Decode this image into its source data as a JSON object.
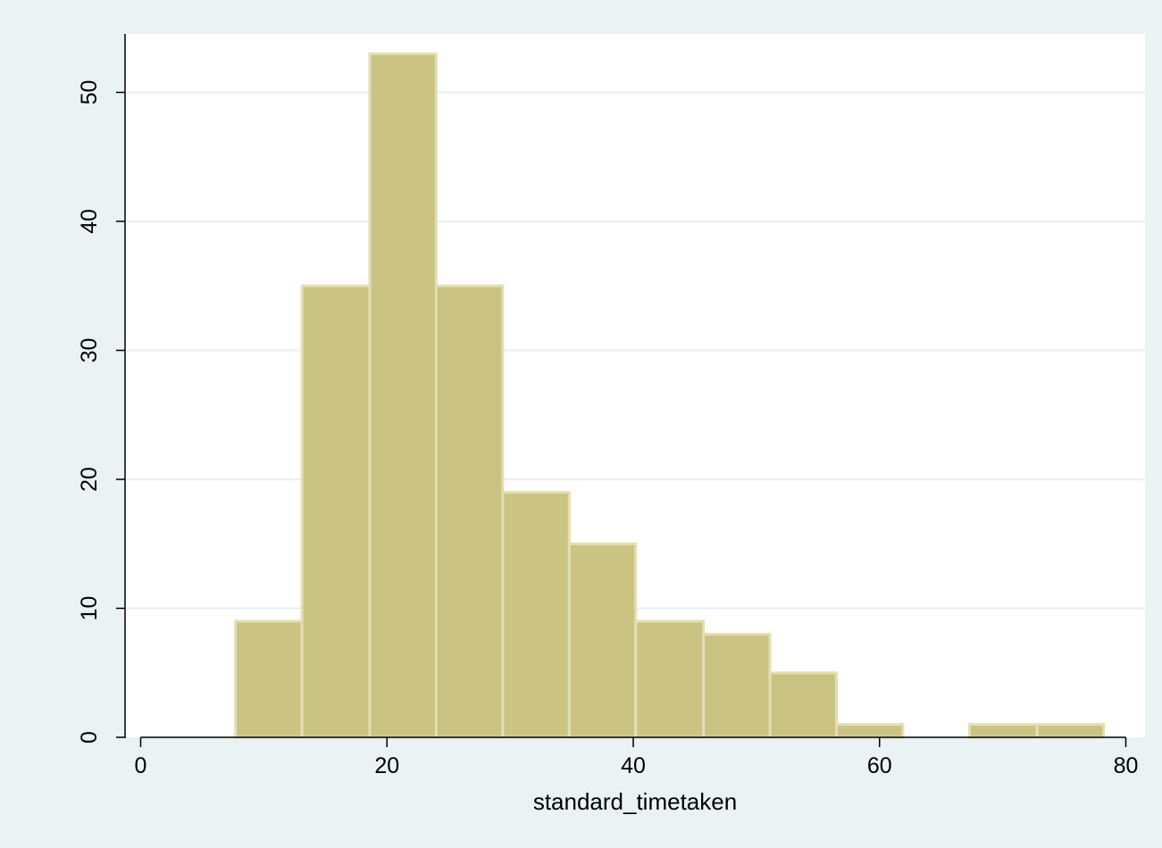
{
  "chart_data": {
    "type": "bar",
    "histogram": true,
    "xlabel": "standard_timetaken",
    "ylabel": "",
    "xlim": [
      0,
      80
    ],
    "ylim": [
      0,
      55
    ],
    "x_ticks": [
      0,
      20,
      40,
      60,
      80
    ],
    "y_ticks": [
      0,
      10,
      20,
      30,
      40,
      50
    ],
    "grid": "horizontal",
    "bins": [
      {
        "start": 7.7,
        "end": 13.1,
        "count": 9
      },
      {
        "start": 13.1,
        "end": 18.6,
        "count": 35
      },
      {
        "start": 18.6,
        "end": 24.0,
        "count": 53
      },
      {
        "start": 24.0,
        "end": 29.4,
        "count": 35
      },
      {
        "start": 29.4,
        "end": 34.8,
        "count": 19
      },
      {
        "start": 34.8,
        "end": 40.2,
        "count": 15
      },
      {
        "start": 40.2,
        "end": 45.7,
        "count": 9
      },
      {
        "start": 45.7,
        "end": 51.1,
        "count": 8
      },
      {
        "start": 51.1,
        "end": 56.5,
        "count": 5
      },
      {
        "start": 56.5,
        "end": 61.9,
        "count": 1
      },
      {
        "start": 61.9,
        "end": 67.3,
        "count": 0
      },
      {
        "start": 67.3,
        "end": 72.8,
        "count": 1
      },
      {
        "start": 72.8,
        "end": 78.2,
        "count": 1
      }
    ]
  },
  "colors": {
    "background": "#EAF2F3",
    "plot_area": "#FFFFFF",
    "bar_fill": "#CBC382",
    "bar_edge": "#E3DFB4",
    "grid": "#EAF2F3",
    "axis": "#000000"
  }
}
